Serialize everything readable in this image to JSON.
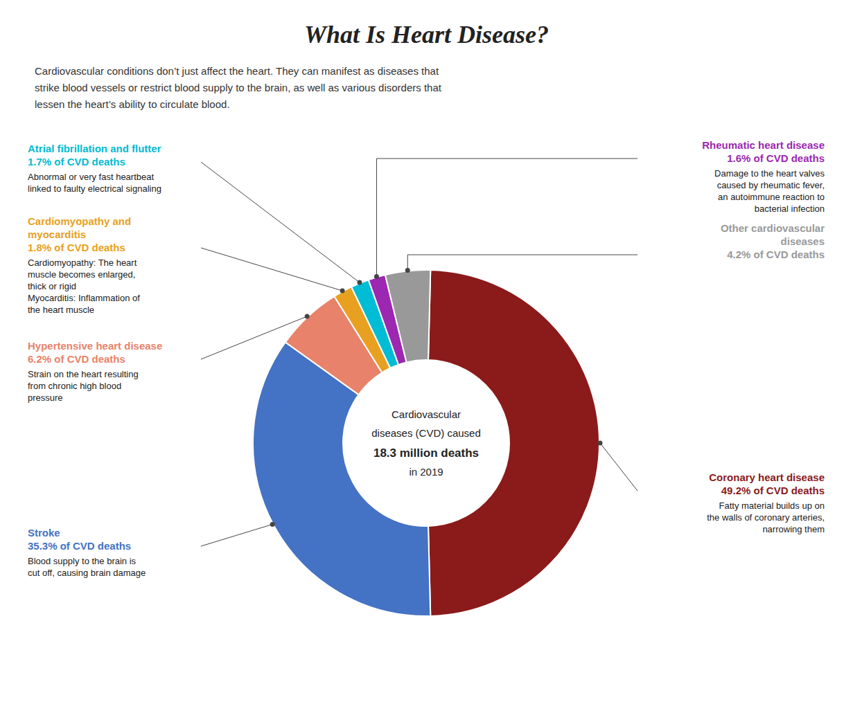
{
  "chart_data": {
    "type": "donut",
    "title": "What Is Heart Disease?",
    "subtitle": "Cardiovascular conditions don’t just affect the heart. They can manifest as diseases that\nstrike blood vessels or restrict blood supply to the brain, as well as various disorders that\nlessen the heart’s ability to circulate blood.",
    "categories": [
      "Coronary heart disease",
      "Stroke",
      "Hypertensive heart disease",
      "Cardiomyopathy and\nmyocarditis",
      "Atrial fibrillation and flutter",
      "Rheumatic heart disease",
      "Other cardiovascular\ndiseases"
    ],
    "values": [
      49.2,
      35.3,
      6.2,
      1.8,
      1.7,
      1.6,
      4.2
    ],
    "colors": [
      "#8b1a1a",
      "#4472c4",
      "#e8826a",
      "#e8a020",
      "#00bcd4",
      "#9c27b0",
      "#999999"
    ],
    "value_labels": [
      "49.2% of CVD deaths",
      "35.3% of CVD deaths",
      "6.2% of CVD deaths",
      "1.8% of CVD deaths",
      "1.7% of CVD deaths",
      "1.6% of CVD deaths",
      "4.2% of CVD deaths"
    ],
    "data_labels": true,
    "annotations": [
      "Fatty material builds up on\nthe walls of coronary arteries,\nnarrowing them",
      "Blood supply to the brain is\ncut off, causing brain damage",
      "Strain on the heart resulting\nfrom chronic high blood\npressure",
      "Cardiomyopathy: The heart\nmuscle becomes enlarged,\nthick or rigid\nMyocarditis: Inflammation of\nthe heart muscle",
      "Abnormal or very fast heartbeat\nlinked to faulty electrical signaling",
      "Damage to the heart valves\ncaused by rheumatic fever,\nan autoimmune reaction to\nbacterial infection",
      null
    ],
    "center_text": [
      "Cardiovascular",
      "diseases (CVD) caused",
      "18.3 million deaths",
      "in 2019"
    ]
  }
}
